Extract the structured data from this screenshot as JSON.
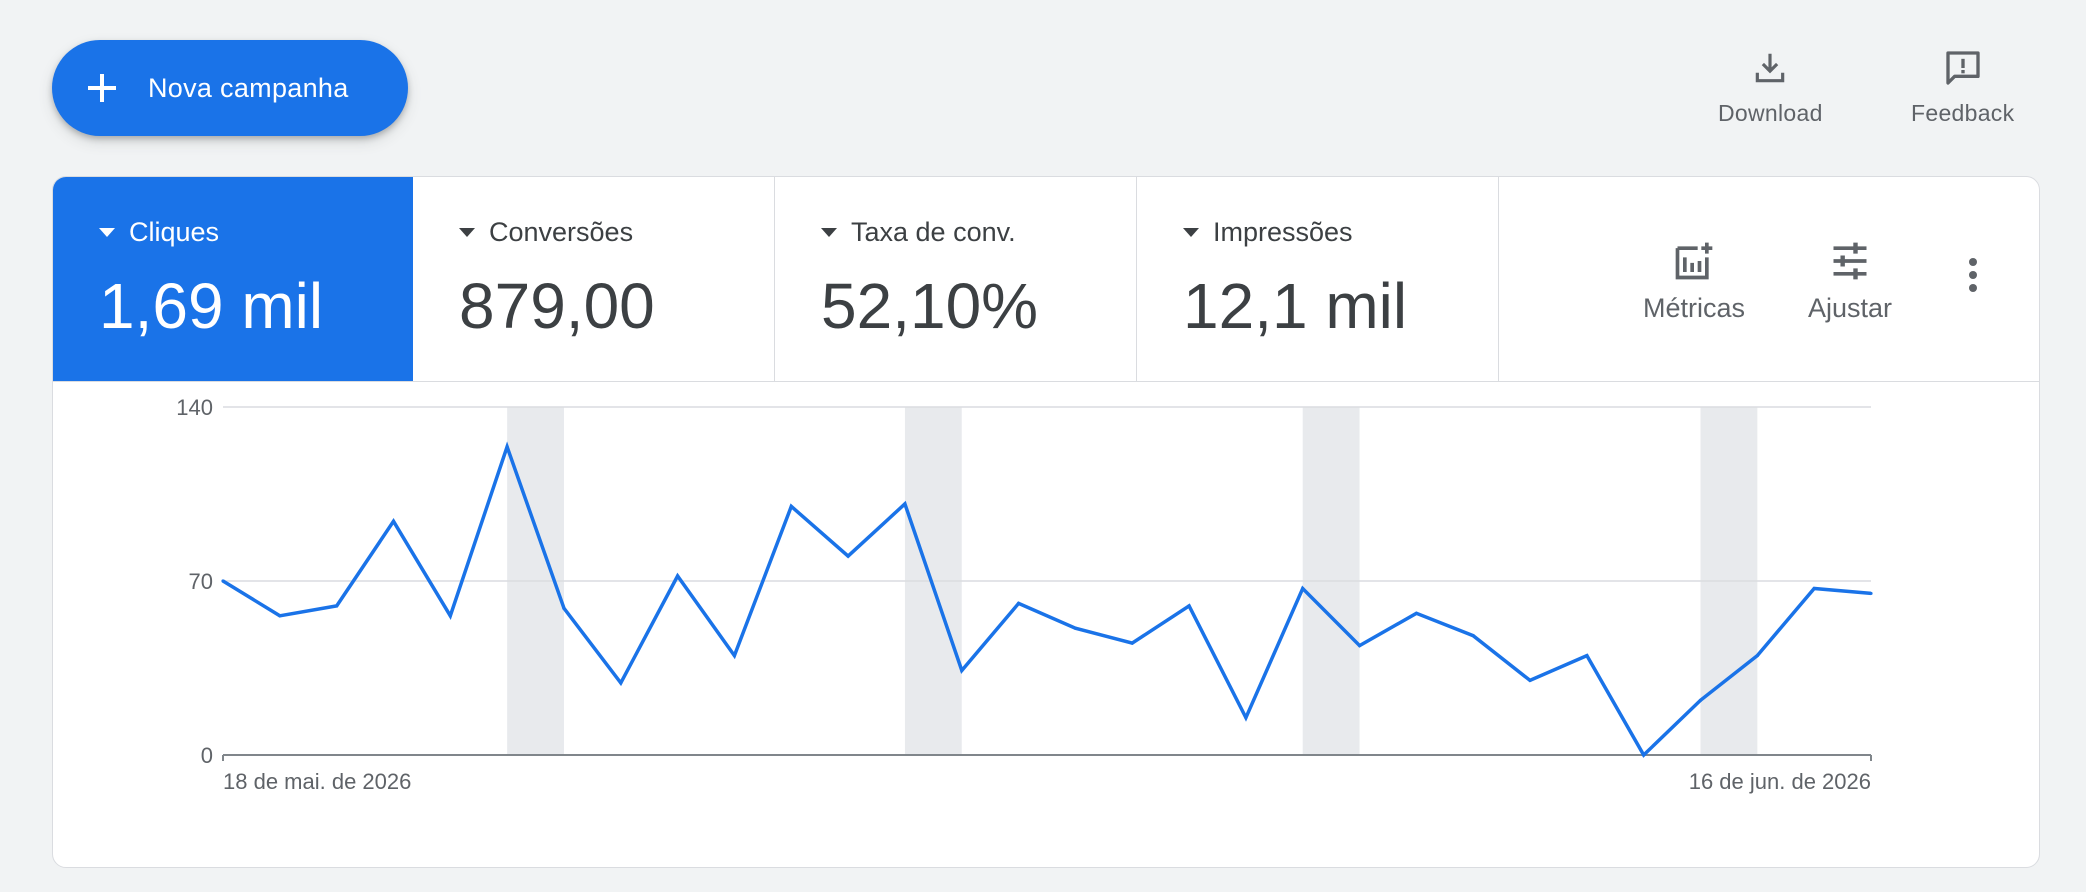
{
  "header": {
    "new_campaign_label": "Nova campanha",
    "actions": [
      {
        "label": "Download",
        "icon": "download-icon"
      },
      {
        "label": "Feedback",
        "icon": "feedback-icon"
      }
    ]
  },
  "metrics": [
    {
      "name": "Cliques",
      "value": "1,69 mil",
      "selected": true
    },
    {
      "name": "Conversões",
      "value": "879,00",
      "selected": false
    },
    {
      "name": "Taxa de conv.",
      "value": "52,10%",
      "selected": false
    },
    {
      "name": "Impressões",
      "value": "12,1 mil",
      "selected": false
    }
  ],
  "tools": [
    {
      "label": "Métricas",
      "icon": "add-chart-icon"
    },
    {
      "label": "Ajustar",
      "icon": "tune-icon"
    }
  ],
  "more_icon": "more-vert-icon",
  "colors": {
    "accent": "#1a73e8",
    "line": "#1a73e8",
    "weekend_band": "#e8eaed",
    "grid": "#dadce0"
  },
  "chart_data": {
    "type": "line",
    "series": [
      {
        "name": "Cliques",
        "values": [
          70,
          56,
          60,
          94,
          56,
          124,
          59,
          29,
          72,
          40,
          100,
          80,
          101,
          34,
          61,
          51,
          45,
          60,
          15,
          67,
          44,
          57,
          48,
          30,
          40,
          0,
          22,
          40,
          67,
          65
        ]
      }
    ],
    "x_start_label": "18 de mai. de 2026",
    "x_end_label": "16 de jun. de 2026",
    "y_ticks": [
      "0",
      "70",
      "140"
    ],
    "ylim": [
      0,
      140
    ],
    "weekend_bands": [
      [
        5,
        6
      ],
      [
        12,
        13
      ],
      [
        19,
        20
      ],
      [
        26,
        27
      ]
    ],
    "grid": true
  }
}
